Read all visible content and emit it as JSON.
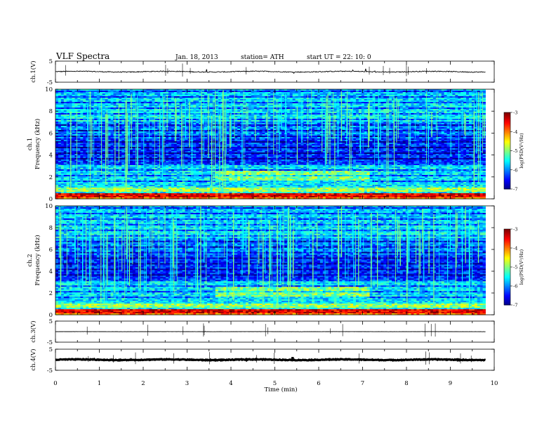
{
  "header": {
    "title": "VLF  Spectra",
    "date": "Jan. 18, 2013",
    "station": "station= ATH",
    "start": "start  UT  =    22: 10: 0"
  },
  "chart_data": [
    {
      "type": "line",
      "name": "ch1-waveform",
      "ylabel": "ch.1(V)",
      "ylim": [
        -5,
        5
      ],
      "yticks": [
        "5",
        "-5"
      ],
      "xlim": [
        0,
        10
      ],
      "baseline_v": 0,
      "noise_v": 0.3,
      "data_end_min": 9.8
    },
    {
      "type": "heatmap",
      "name": "ch1-spectrogram",
      "ylabel": "ch.1\nFrequency  (kHz)",
      "ylim": [
        0,
        10
      ],
      "yticks": [
        "0",
        "2",
        "4",
        "6",
        "8",
        "10"
      ],
      "xlim": [
        0,
        10
      ],
      "data_end_min": 9.8,
      "colorbar": {
        "label": "log(PSD(V²/Hz)",
        "ticks": [
          "-3",
          "-4",
          "-5",
          "-6",
          "-7"
        ],
        "range": [
          -7,
          -3
        ]
      }
    },
    {
      "type": "heatmap",
      "name": "ch2-spectrogram",
      "ylabel": "ch.2\nFrequency  (kHz)",
      "ylim": [
        0,
        10
      ],
      "yticks": [
        "0",
        "2",
        "4",
        "6",
        "8",
        "10"
      ],
      "xlim": [
        0,
        10
      ],
      "data_end_min": 9.8,
      "colorbar": {
        "label": "log(PSD(V²/Hz)",
        "ticks": [
          "-3",
          "-4",
          "-5",
          "-6",
          "-7"
        ],
        "range": [
          -7,
          -3
        ]
      }
    },
    {
      "type": "line",
      "name": "ch3-waveform",
      "ylabel": "ch.3(V)",
      "ylim": [
        -5,
        5
      ],
      "yticks": [
        "5",
        "-5"
      ],
      "xlim": [
        0,
        10
      ],
      "baseline_v": 0,
      "noise_v": 0.05,
      "data_end_min": 9.8
    },
    {
      "type": "line",
      "name": "ch4-waveform",
      "ylabel": "ch.4(V)",
      "ylim": [
        -5,
        5
      ],
      "yticks": [
        "5",
        "-5"
      ],
      "xlim": [
        0,
        10
      ],
      "baseline_v": 0,
      "noise_v": 0.25,
      "data_end_min": 9.8
    }
  ],
  "x_axis": {
    "label": "Time  (min)",
    "ticks": [
      "0",
      "1",
      "2",
      "3",
      "4",
      "5",
      "6",
      "7",
      "8",
      "9",
      "10"
    ]
  }
}
